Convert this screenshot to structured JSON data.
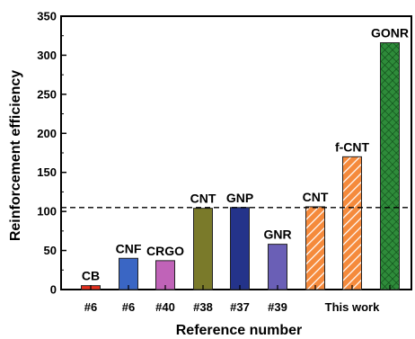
{
  "chart_data": {
    "type": "bar",
    "xlabel": "Reference number",
    "ylabel": "Reinforcement efficiency",
    "ylim": [
      0,
      350
    ],
    "yticks": [
      0,
      50,
      100,
      150,
      200,
      250,
      300,
      350
    ],
    "xtick_labels": [
      "#6",
      "#6",
      "#40",
      "#38",
      "#37",
      "#39",
      "This work"
    ],
    "reference_line": 105,
    "bars": [
      {
        "label": "CB",
        "value": 5,
        "ref": "#6",
        "color": "#e8301e",
        "pattern": "solid"
      },
      {
        "label": "CNF",
        "value": 40,
        "ref": "#6",
        "color": "#3a66c4",
        "pattern": "solid"
      },
      {
        "label": "CRGO",
        "value": 37,
        "ref": "#40",
        "color": "#c063b8",
        "pattern": "solid"
      },
      {
        "label": "CNT",
        "value": 104,
        "ref": "#38",
        "color": "#7a7a2a",
        "pattern": "solid"
      },
      {
        "label": "GNP",
        "value": 105,
        "ref": "#37",
        "color": "#24338a",
        "pattern": "solid"
      },
      {
        "label": "GNR",
        "value": 58,
        "ref": "#39",
        "color": "#6a5fb6",
        "pattern": "solid"
      },
      {
        "label": "CNT",
        "value": 106,
        "ref": "This work",
        "color": "#f58a3c",
        "pattern": "hatch"
      },
      {
        "label": "f-CNT",
        "value": 170,
        "ref": "This work",
        "color": "#f58a3c",
        "pattern": "hatch"
      },
      {
        "label": "GONR",
        "value": 316,
        "ref": "This work",
        "color": "#2e8b3a",
        "pattern": "crosshatch"
      }
    ]
  }
}
